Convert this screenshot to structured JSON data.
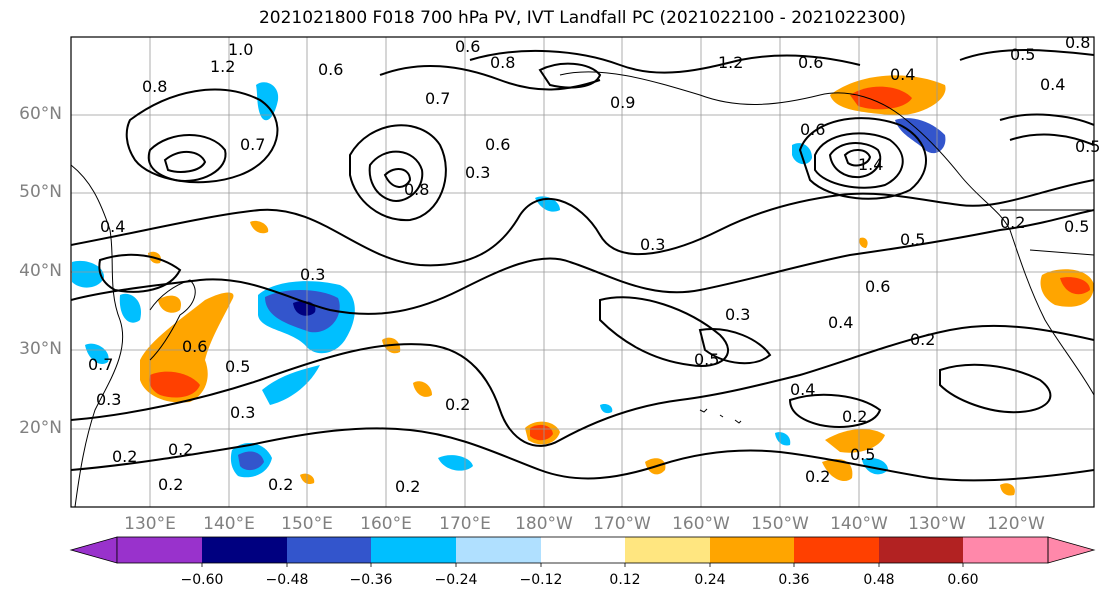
{
  "title": "2021021800 F018 700 hPa PV, IVT Landfall PC (2021022100 - 2021022300)",
  "chart_data": {
    "type": "map",
    "y_tick_labels": [
      "60°N",
      "50°N",
      "40°N",
      "30°N",
      "20°N"
    ],
    "x_tick_labels": [
      "130°E",
      "140°E",
      "150°E",
      "160°E",
      "170°E",
      "180°W",
      "170°W",
      "160°W",
      "150°W",
      "140°W",
      "130°W",
      "120°W"
    ],
    "contour_labels": [
      "0.6",
      "1.0",
      "0.8",
      "1.2",
      "0.8",
      "0.6",
      "0.7",
      "0.5",
      "1.2",
      "0.6",
      "0.4",
      "0.4",
      "0.8",
      "0.7",
      "0.9",
      "0.5",
      "0.3",
      "0.6",
      "0.4",
      "0.3",
      "0.8",
      "0.6",
      "0.3",
      "0.2",
      "0.5",
      "1.4",
      "0.5",
      "0.6",
      "0.5",
      "0.4",
      "0.3",
      "0.2",
      "0.3",
      "0.7",
      "0.6",
      "0.5",
      "0.3",
      "0.2",
      "0.2",
      "0.2",
      "0.4",
      "0.2",
      "0.5",
      "0.2",
      "0.2",
      "0.2",
      "0.2"
    ],
    "colorbar": {
      "ticks": [
        "−0.60",
        "−0.48",
        "−0.36",
        "−0.24",
        "−0.12",
        "0.12",
        "0.24",
        "0.36",
        "0.48",
        "0.60"
      ],
      "colors": [
        "#9932cc",
        "#000080",
        "#3355cc",
        "#00bfff",
        "#b0e0ff",
        "#ffffff",
        "#ffe680",
        "#ffa500",
        "#ff4000",
        "#b22222",
        "#ff88aa"
      ]
    }
  }
}
